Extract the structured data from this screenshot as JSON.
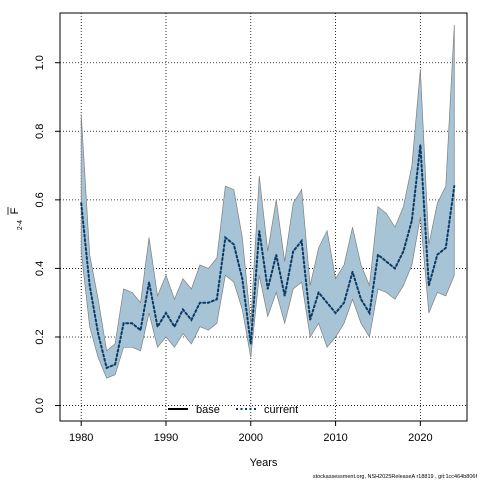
{
  "chart_data": {
    "type": "line",
    "title": "",
    "xlabel": "Years",
    "ylabel_main": "F",
    "ylabel_sub": "2-4",
    "xlim": [
      1977.5,
      2025.5
    ],
    "ylim": [
      -0.045,
      1.145
    ],
    "x_ticks": [
      1980,
      1990,
      2000,
      2010,
      2020
    ],
    "y_ticks": [
      0.0,
      0.2,
      0.4,
      0.6,
      0.8,
      1.0
    ],
    "y_tick_labels": [
      "0.0",
      "0.2",
      "0.4",
      "0.6",
      "0.8",
      "1.0"
    ],
    "grid": true,
    "legend_position": "bottom-center",
    "colors": {
      "band_fill": "#a6c4d5",
      "band_edge": "#7f7f7f",
      "base_line": "#000000",
      "current_line": "#0b3a66",
      "grid": "#000000"
    },
    "legend": [
      {
        "label": "base",
        "style": "solid"
      },
      {
        "label": "current",
        "style": "dotted"
      }
    ],
    "series": [
      {
        "name": "current",
        "x": [
          1980,
          1981,
          1982,
          1983,
          1984,
          1985,
          1986,
          1987,
          1988,
          1989,
          1990,
          1991,
          1992,
          1993,
          1994,
          1995,
          1996,
          1997,
          1998,
          1999,
          2000,
          2001,
          2002,
          2003,
          2004,
          2005,
          2006,
          2007,
          2008,
          2009,
          2010,
          2011,
          2012,
          2013,
          2014,
          2015,
          2016,
          2017,
          2018,
          2019,
          2020,
          2021,
          2022,
          2023,
          2024
        ],
        "values": [
          0.59,
          0.35,
          0.21,
          0.11,
          0.12,
          0.24,
          0.24,
          0.22,
          0.36,
          0.23,
          0.27,
          0.23,
          0.28,
          0.25,
          0.3,
          0.3,
          0.31,
          0.49,
          0.47,
          0.37,
          0.18,
          0.51,
          0.34,
          0.44,
          0.32,
          0.45,
          0.48,
          0.25,
          0.33,
          0.3,
          0.27,
          0.3,
          0.39,
          0.31,
          0.27,
          0.44,
          0.42,
          0.4,
          0.45,
          0.54,
          0.76,
          0.35,
          0.44,
          0.46,
          0.64
        ],
        "lower": [
          0.45,
          0.23,
          0.14,
          0.08,
          0.09,
          0.17,
          0.17,
          0.16,
          0.27,
          0.17,
          0.2,
          0.17,
          0.21,
          0.18,
          0.23,
          0.22,
          0.24,
          0.38,
          0.36,
          0.28,
          0.14,
          0.38,
          0.26,
          0.33,
          0.24,
          0.34,
          0.36,
          0.2,
          0.24,
          0.17,
          0.2,
          0.24,
          0.31,
          0.24,
          0.2,
          0.34,
          0.33,
          0.31,
          0.35,
          0.41,
          0.55,
          0.27,
          0.33,
          0.32,
          0.38
        ],
        "upper": [
          0.85,
          0.44,
          0.31,
          0.16,
          0.18,
          0.34,
          0.33,
          0.3,
          0.49,
          0.32,
          0.38,
          0.31,
          0.37,
          0.34,
          0.41,
          0.4,
          0.43,
          0.64,
          0.63,
          0.49,
          0.24,
          0.67,
          0.45,
          0.6,
          0.42,
          0.59,
          0.63,
          0.35,
          0.46,
          0.51,
          0.37,
          0.41,
          0.52,
          0.41,
          0.35,
          0.58,
          0.56,
          0.52,
          0.58,
          0.7,
          0.98,
          0.47,
          0.59,
          0.64,
          1.11
        ]
      },
      {
        "name": "base",
        "x": [],
        "values": []
      }
    ]
  },
  "footer_text": "stockassessment.org, NSH2025ReleaseA r18819 , git:1cc464b806f"
}
